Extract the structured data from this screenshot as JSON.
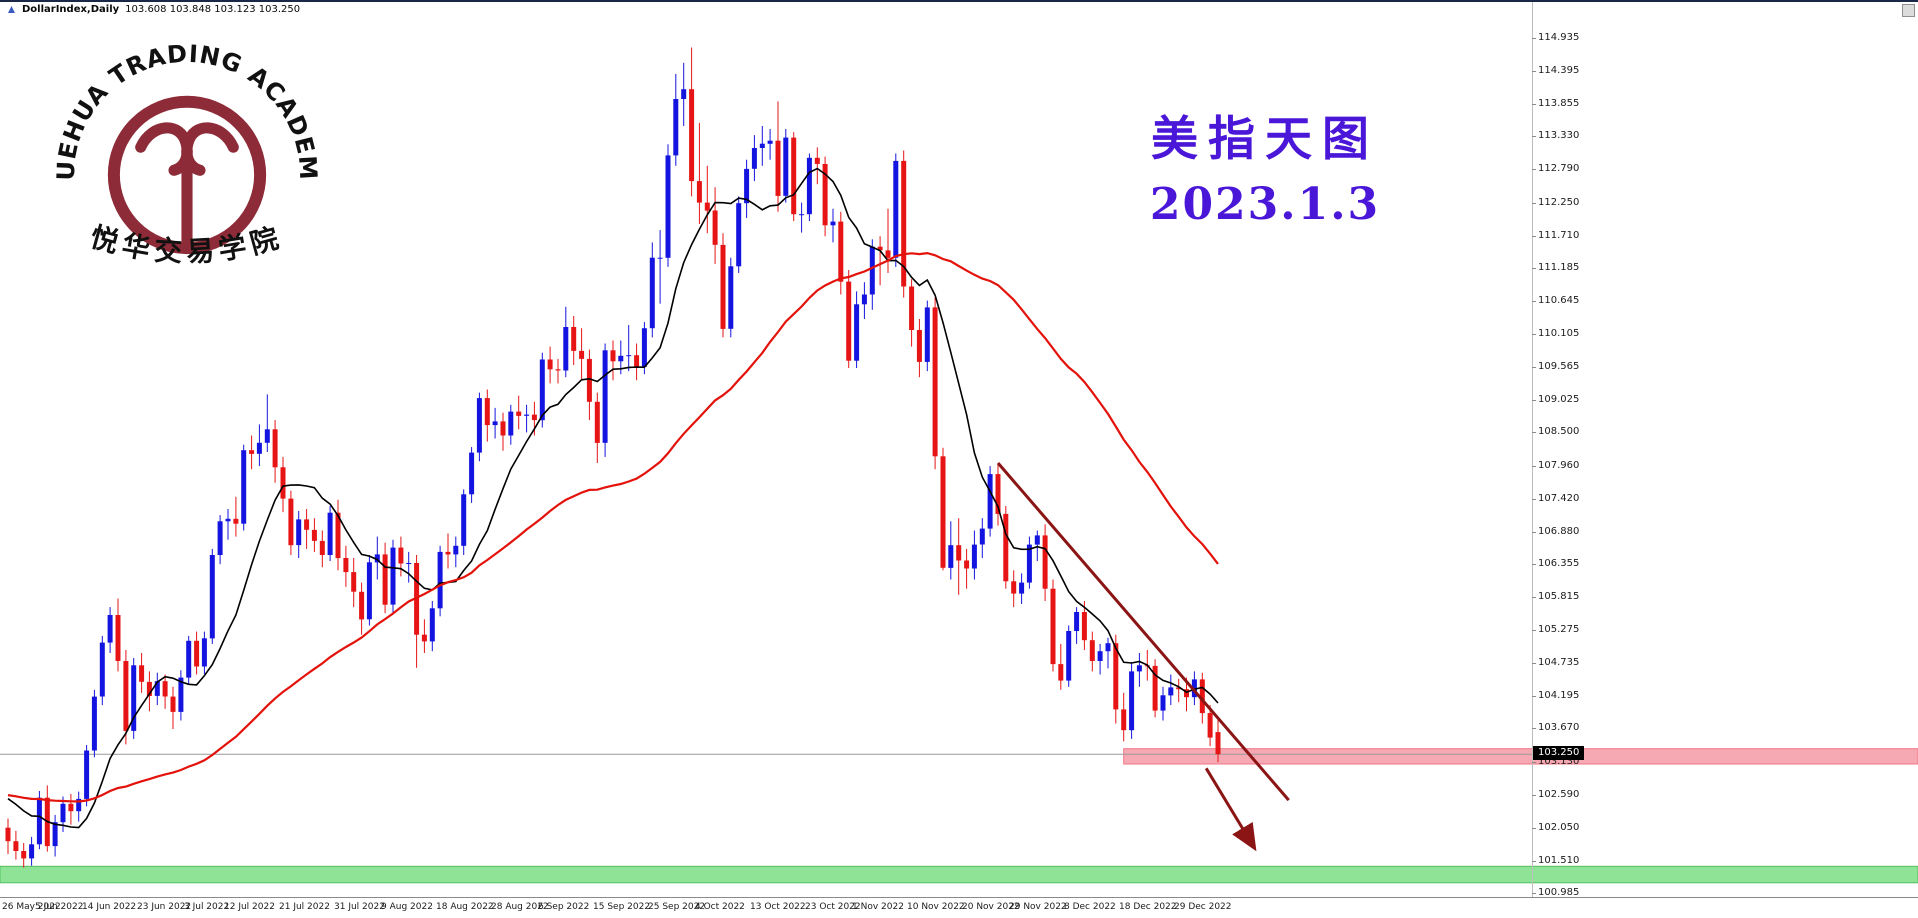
{
  "window": {
    "symbol_period": "DollarIndex,Daily",
    "ohlc": "103.608 103.848 103.123 103.250"
  },
  "logo": {
    "arc_text": "YUEHUA TRADING ACADEMY",
    "cn_text": "悦华交易学院",
    "color": "#8e2b38"
  },
  "annotation": {
    "line1": "美指天图",
    "line2": "2023.1.3",
    "color": "#4a17d8"
  },
  "price_scale": {
    "labels": [
      "114.935",
      "114.395",
      "113.855",
      "113.330",
      "112.790",
      "112.250",
      "111.710",
      "111.185",
      "110.645",
      "110.105",
      "109.565",
      "109.025",
      "108.500",
      "107.960",
      "107.420",
      "106.880",
      "106.355",
      "105.815",
      "105.275",
      "104.735",
      "104.195",
      "103.670",
      "103.130",
      "102.590",
      "102.050",
      "101.510",
      "100.985"
    ],
    "current_price": "103.250"
  },
  "time_axis": {
    "labels": [
      {
        "text": "26 May 2022",
        "bar": 0
      },
      {
        "text": "5 Jun 2022",
        "bar": 7
      },
      {
        "text": "14 Jun 2022",
        "bar": 13
      },
      {
        "text": "23 Jun 2022",
        "bar": 20
      },
      {
        "text": "3 Jul 2022",
        "bar": 26
      },
      {
        "text": "12 Jul 2022",
        "bar": 31
      },
      {
        "text": "21 Jul 2022",
        "bar": 38
      },
      {
        "text": "31 Jul 2022",
        "bar": 45
      },
      {
        "text": "9 Aug 2022",
        "bar": 51
      },
      {
        "text": "18 Aug 2022",
        "bar": 58
      },
      {
        "text": "28 Aug 2022",
        "bar": 65
      },
      {
        "text": "6 Sep 2022",
        "bar": 71
      },
      {
        "text": "15 Sep 2022",
        "bar": 78
      },
      {
        "text": "25 Sep 2022",
        "bar": 85
      },
      {
        "text": "4 Oct 2022",
        "bar": 91
      },
      {
        "text": "13 Oct 2022",
        "bar": 98
      },
      {
        "text": "23 Oct 2022",
        "bar": 105
      },
      {
        "text": "1 Nov 2022",
        "bar": 111
      },
      {
        "text": "10 Nov 2022",
        "bar": 118
      },
      {
        "text": "20 Nov 2022",
        "bar": 125
      },
      {
        "text": "29 Nov 2022",
        "bar": 131
      },
      {
        "text": "8 Dec 2022",
        "bar": 138
      },
      {
        "text": "18 Dec 2022",
        "bar": 145
      },
      {
        "text": "29 Dec 2022",
        "bar": 152
      }
    ]
  },
  "chart_data": {
    "type": "candlestick",
    "symbol": "DollarIndex",
    "timeframe": "Daily",
    "title": "美指天图 2023.1.3",
    "ylim": [
      100.985,
      114.935
    ],
    "up_color": "#1414e0",
    "down_color": "#e61414",
    "ma_prehistory_close": 102.6,
    "moving_averages": [
      {
        "name": "ma-fast-line",
        "period": 10,
        "color": "#000000",
        "width": 1.6
      },
      {
        "name": "ma-slow-line",
        "period": 45,
        "color": "#e3120b",
        "width": 2.2
      }
    ],
    "zones": [
      {
        "name": "resistance-zone",
        "price_from": 103.09,
        "price_to": 103.34,
        "from_bar": 142,
        "fill": "#f7a9b3",
        "border": "#ef7484"
      },
      {
        "name": "support-zone",
        "price_from": 101.15,
        "price_to": 101.42,
        "from_bar": 0,
        "fill": "#8fe397",
        "border": "#52c25e"
      }
    ],
    "trendline": {
      "from_bar": 126,
      "from_price": 108.0,
      "to_bar": 163,
      "to_price": 102.5,
      "color": "#8b1414",
      "width": 3
    },
    "arrow": {
      "from_bar": 152.5,
      "from_price": 103.02,
      "to_bar": 158.5,
      "to_price": 101.75,
      "color": "#8b1414",
      "width": 3
    },
    "current_price_line": {
      "price": 103.25,
      "color": "#9a9a9a"
    },
    "ohlc": [
      [
        102.05,
        102.2,
        101.62,
        101.83
      ],
      [
        101.83,
        102,
        101.53,
        101.67
      ],
      [
        101.67,
        101.8,
        101.4,
        101.55
      ],
      [
        101.55,
        101.9,
        101.43,
        101.78
      ],
      [
        101.78,
        102.65,
        101.7,
        102.54
      ],
      [
        102.54,
        102.74,
        101.66,
        101.75
      ],
      [
        101.75,
        102.26,
        101.58,
        102.14
      ],
      [
        102.14,
        102.56,
        101.98,
        102.44
      ],
      [
        102.44,
        102.6,
        102.1,
        102.32
      ],
      [
        102.32,
        102.64,
        102.15,
        102.52
      ],
      [
        102.52,
        103.4,
        102.4,
        103.31
      ],
      [
        103.31,
        104.3,
        103.2,
        104.19
      ],
      [
        104.19,
        105.18,
        104.05,
        105.07
      ],
      [
        105.07,
        105.65,
        104.9,
        105.52
      ],
      [
        105.52,
        105.79,
        104.6,
        104.77
      ],
      [
        104.77,
        104.95,
        103.41,
        103.63
      ],
      [
        103.63,
        104.82,
        103.5,
        104.7
      ],
      [
        104.7,
        104.9,
        104.25,
        104.43
      ],
      [
        104.43,
        104.6,
        103.95,
        104.2
      ],
      [
        104.2,
        104.58,
        104.05,
        104.44
      ],
      [
        104.44,
        104.55,
        103.99,
        104.19
      ],
      [
        104.19,
        104.35,
        103.66,
        103.94
      ],
      [
        103.94,
        104.62,
        103.8,
        104.5
      ],
      [
        104.5,
        105.18,
        104.38,
        105.1
      ],
      [
        105.1,
        105.25,
        104.55,
        104.68
      ],
      [
        104.68,
        105.25,
        104.56,
        105.14
      ],
      [
        105.14,
        106.6,
        105.05,
        106.5
      ],
      [
        106.5,
        107.15,
        106.35,
        107.05
      ],
      [
        107.05,
        107.25,
        106.75,
        107.09
      ],
      [
        107.09,
        107.45,
        106.8,
        107.01
      ],
      [
        107.01,
        108.3,
        106.9,
        108.21
      ],
      [
        108.21,
        108.45,
        107.9,
        108.15
      ],
      [
        108.15,
        108.63,
        107.95,
        108.33
      ],
      [
        108.33,
        109.12,
        108.18,
        108.55
      ],
      [
        108.55,
        108.7,
        107.68,
        107.93
      ],
      [
        107.93,
        108.1,
        107.2,
        107.42
      ],
      [
        107.42,
        107.55,
        106.5,
        106.66
      ],
      [
        106.66,
        107.22,
        106.45,
        107.08
      ],
      [
        107.08,
        107.25,
        106.6,
        106.91
      ],
      [
        106.91,
        107.1,
        106.55,
        106.73
      ],
      [
        106.73,
        106.9,
        106.3,
        106.5
      ],
      [
        106.5,
        107.3,
        106.4,
        107.19
      ],
      [
        107.19,
        107.4,
        106.25,
        106.45
      ],
      [
        106.45,
        106.65,
        105.98,
        106.22
      ],
      [
        106.22,
        106.45,
        105.65,
        105.9
      ],
      [
        105.9,
        106.05,
        105.2,
        105.45
      ],
      [
        105.45,
        106.5,
        105.35,
        106.38
      ],
      [
        106.38,
        106.8,
        106.1,
        106.51
      ],
      [
        106.51,
        106.7,
        105.55,
        105.69
      ],
      [
        105.69,
        106.75,
        105.55,
        106.62
      ],
      [
        106.62,
        106.8,
        106.15,
        106.36
      ],
      [
        106.36,
        106.55,
        106.05,
        106.37
      ],
      [
        106.37,
        106.5,
        104.66,
        105.2
      ],
      [
        105.2,
        105.45,
        104.9,
        105.09
      ],
      [
        105.09,
        105.75,
        104.93,
        105.63
      ],
      [
        105.63,
        106.65,
        105.5,
        106.55
      ],
      [
        106.55,
        106.85,
        106.28,
        106.51
      ],
      [
        106.51,
        106.8,
        106.3,
        106.65
      ],
      [
        106.65,
        107.57,
        106.5,
        107.49
      ],
      [
        107.49,
        108.26,
        107.35,
        108.17
      ],
      [
        108.17,
        109.15,
        108.03,
        109.06
      ],
      [
        109.06,
        109.2,
        108.35,
        108.62
      ],
      [
        108.62,
        108.9,
        108.4,
        108.68
      ],
      [
        108.68,
        108.82,
        108.2,
        108.45
      ],
      [
        108.45,
        108.95,
        108.3,
        108.84
      ],
      [
        108.84,
        109.1,
        108.55,
        108.77
      ],
      [
        108.77,
        108.95,
        108.5,
        108.79
      ],
      [
        108.79,
        109,
        108.45,
        108.7
      ],
      [
        108.7,
        109.8,
        108.58,
        109.69
      ],
      [
        109.69,
        109.9,
        109.3,
        109.53
      ],
      [
        109.53,
        109.7,
        109.3,
        109.51
      ],
      [
        109.51,
        110.55,
        109.4,
        110.22
      ],
      [
        110.22,
        110.4,
        109.6,
        109.83
      ],
      [
        109.83,
        110.2,
        109.35,
        109.7
      ],
      [
        109.7,
        109.85,
        108.7,
        109
      ],
      [
        109,
        109.15,
        108,
        108.33
      ],
      [
        108.33,
        109.95,
        108.1,
        109.84
      ],
      [
        109.84,
        110,
        109.35,
        109.66
      ],
      [
        109.66,
        110,
        109.45,
        109.75
      ],
      [
        109.75,
        110.25,
        109.5,
        109.76
      ],
      [
        109.76,
        109.95,
        109.35,
        109.57
      ],
      [
        109.57,
        110.3,
        109.45,
        110.2
      ],
      [
        110.2,
        111.6,
        110.05,
        111.35
      ],
      [
        111.35,
        111.8,
        110.6,
        111.35
      ],
      [
        111.35,
        113.2,
        111.2,
        113.02
      ],
      [
        113.02,
        114.35,
        112.85,
        113.94
      ],
      [
        113.94,
        114.53,
        113.5,
        114.1
      ],
      [
        114.1,
        114.78,
        112.35,
        112.6
      ],
      [
        112.6,
        113.55,
        111.9,
        112.25
      ],
      [
        112.25,
        112.85,
        111.75,
        112.12
      ],
      [
        112.12,
        112.5,
        111.25,
        111.56
      ],
      [
        111.56,
        111.75,
        110.05,
        110.19
      ],
      [
        110.19,
        111.35,
        110.05,
        111.21
      ],
      [
        111.21,
        112.35,
        111.1,
        112.24
      ],
      [
        112.24,
        112.95,
        112,
        112.8
      ],
      [
        112.8,
        113.35,
        112.6,
        113.14
      ],
      [
        113.14,
        113.5,
        112.85,
        113.21
      ],
      [
        113.21,
        113.45,
        112.95,
        113.26
      ],
      [
        113.26,
        113.9,
        112.1,
        112.36
      ],
      [
        112.36,
        113.45,
        112.25,
        113.31
      ],
      [
        113.31,
        113.4,
        111.95,
        112.06
      ],
      [
        112.06,
        112.25,
        111.76,
        112.06
      ],
      [
        112.06,
        113.05,
        111.95,
        112.98
      ],
      [
        112.98,
        113.15,
        112.55,
        112.88
      ],
      [
        112.88,
        113,
        111.7,
        111.88
      ],
      [
        111.88,
        112.15,
        111.6,
        111.94
      ],
      [
        111.94,
        112.1,
        110.75,
        110.96
      ],
      [
        110.96,
        111.15,
        109.55,
        109.67
      ],
      [
        109.67,
        110.8,
        109.55,
        110.59
      ],
      [
        110.59,
        110.95,
        110.35,
        110.75
      ],
      [
        110.75,
        111.65,
        110.5,
        111.53
      ],
      [
        111.53,
        111.7,
        110.9,
        111.47
      ],
      [
        111.47,
        112.15,
        111.1,
        111.35
      ],
      [
        111.35,
        113.05,
        111.2,
        112.93
      ],
      [
        112.93,
        113.1,
        110.7,
        110.88
      ],
      [
        110.88,
        111,
        109.9,
        110.17
      ],
      [
        110.17,
        110.35,
        109.4,
        109.65
      ],
      [
        109.65,
        110.65,
        109.5,
        110.54
      ],
      [
        110.54,
        110.7,
        107.9,
        108.11
      ],
      [
        108.11,
        108.25,
        106.25,
        106.29
      ],
      [
        106.29,
        107.05,
        106.1,
        106.66
      ],
      [
        106.66,
        107.1,
        105.85,
        106.41
      ],
      [
        106.41,
        106.6,
        105.95,
        106.28
      ],
      [
        106.28,
        106.9,
        106.1,
        106.67
      ],
      [
        106.67,
        107.1,
        106.45,
        106.93
      ],
      [
        106.93,
        107.95,
        106.8,
        107.82
      ],
      [
        107.82,
        107.99,
        106.98,
        107.17
      ],
      [
        107.17,
        107.3,
        105.95,
        106.07
      ],
      [
        106.07,
        106.25,
        105.65,
        105.87
      ],
      [
        105.87,
        106.2,
        105.7,
        106.05
      ],
      [
        106.05,
        106.8,
        105.95,
        106.67
      ],
      [
        106.67,
        106.9,
        106.4,
        106.82
      ],
      [
        106.82,
        107,
        105.75,
        105.95
      ],
      [
        105.95,
        106.1,
        104.6,
        104.72
      ],
      [
        104.72,
        105.05,
        104.3,
        104.45
      ],
      [
        104.45,
        105.35,
        104.35,
        105.26
      ],
      [
        105.26,
        105.65,
        105.05,
        105.57
      ],
      [
        105.57,
        105.75,
        104.95,
        105.11
      ],
      [
        105.11,
        105.25,
        104.6,
        104.77
      ],
      [
        104.77,
        105.05,
        104.55,
        104.93
      ],
      [
        104.93,
        105.15,
        104.65,
        105.06
      ],
      [
        105.06,
        105.2,
        103.75,
        103.98
      ],
      [
        103.98,
        104.25,
        103.46,
        103.64
      ],
      [
        103.64,
        104.75,
        103.5,
        104.6
      ],
      [
        104.6,
        104.9,
        104.35,
        104.7
      ],
      [
        104.7,
        104.95,
        104.45,
        104.69
      ],
      [
        104.69,
        104.8,
        103.85,
        103.96
      ],
      [
        103.96,
        104.35,
        103.8,
        104.21
      ],
      [
        104.21,
        104.55,
        104.05,
        104.34
      ],
      [
        104.34,
        104.48,
        104.1,
        104.31
      ],
      [
        104.31,
        104.5,
        103.95,
        104.18
      ],
      [
        104.18,
        104.6,
        104.05,
        104.47
      ],
      [
        104.47,
        104.58,
        103.75,
        103.92
      ],
      [
        103.92,
        104.05,
        103.38,
        103.52
      ],
      [
        103.61,
        103.85,
        103.12,
        103.25
      ]
    ]
  }
}
